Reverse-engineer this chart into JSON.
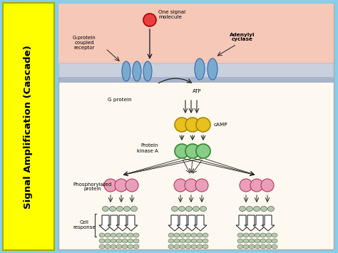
{
  "bg_color": "#87CEEB",
  "left_bar_color": "#FFFF00",
  "left_bar_text": "Signal Amplification (Cascade)",
  "left_bar_text_color": "#000000",
  "diagram_bg": "#FEF9F0",
  "membrane_color": "#B8C4D8",
  "membrane_top_bg": "#F5C8B8",
  "labels": {
    "one_signal": "One signal\nmolecule",
    "g_protein_receptor": "G-protein\ncoupled\nreceptor",
    "adenylyl_cyclase": "Adenylyl\ncyclase",
    "g_protein": "G protein",
    "atp": "ATP",
    "camp": "cAMP",
    "protein_kinase": "Protein\nkinase A",
    "phosphorylated": "Phosphorylated\nprotein",
    "cell_response": "Cell\nresponse"
  },
  "colors": {
    "signal_molecule": "#E84040",
    "receptor": "#7BAACF",
    "cyclase": "#7BAACF",
    "camp_circle": "#E8C020",
    "kinase_circle": "#88CC88",
    "phospho_circle": "#E8A0B8",
    "cell_response_circle": "#B8C8B0",
    "arrow": "#222222",
    "big_arrow_fill": "#FFFFFF",
    "big_arrow_edge": "#333333"
  }
}
